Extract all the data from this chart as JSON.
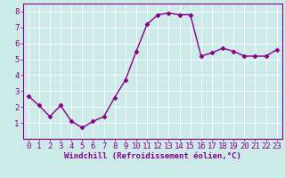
{
  "x": [
    0,
    1,
    2,
    3,
    4,
    5,
    6,
    7,
    8,
    9,
    10,
    11,
    12,
    13,
    14,
    15,
    16,
    17,
    18,
    19,
    20,
    21,
    22,
    23
  ],
  "y": [
    2.7,
    2.1,
    1.4,
    2.1,
    1.1,
    0.7,
    1.1,
    1.4,
    2.6,
    3.7,
    5.5,
    7.2,
    7.8,
    7.9,
    7.8,
    7.8,
    5.2,
    5.4,
    5.7,
    5.5,
    5.2,
    5.2,
    5.2,
    5.6
  ],
  "line_color": "#880088",
  "marker": "D",
  "marker_size": 2.5,
  "bg_color": "#cceae8",
  "grid_color": "#ffffff",
  "xlabel": "Windchill (Refroidissement éolien,°C)",
  "tick_color": "#880088",
  "ylim": [
    0,
    8.5
  ],
  "xlim": [
    -0.5,
    23.5
  ],
  "yticks": [
    1,
    2,
    3,
    4,
    5,
    6,
    7,
    8
  ],
  "xticks": [
    0,
    1,
    2,
    3,
    4,
    5,
    6,
    7,
    8,
    9,
    10,
    11,
    12,
    13,
    14,
    15,
    16,
    17,
    18,
    19,
    20,
    21,
    22,
    23
  ],
  "xlabel_fontsize": 6.5,
  "tick_fontsize": 6.5,
  "linewidth": 1.0
}
